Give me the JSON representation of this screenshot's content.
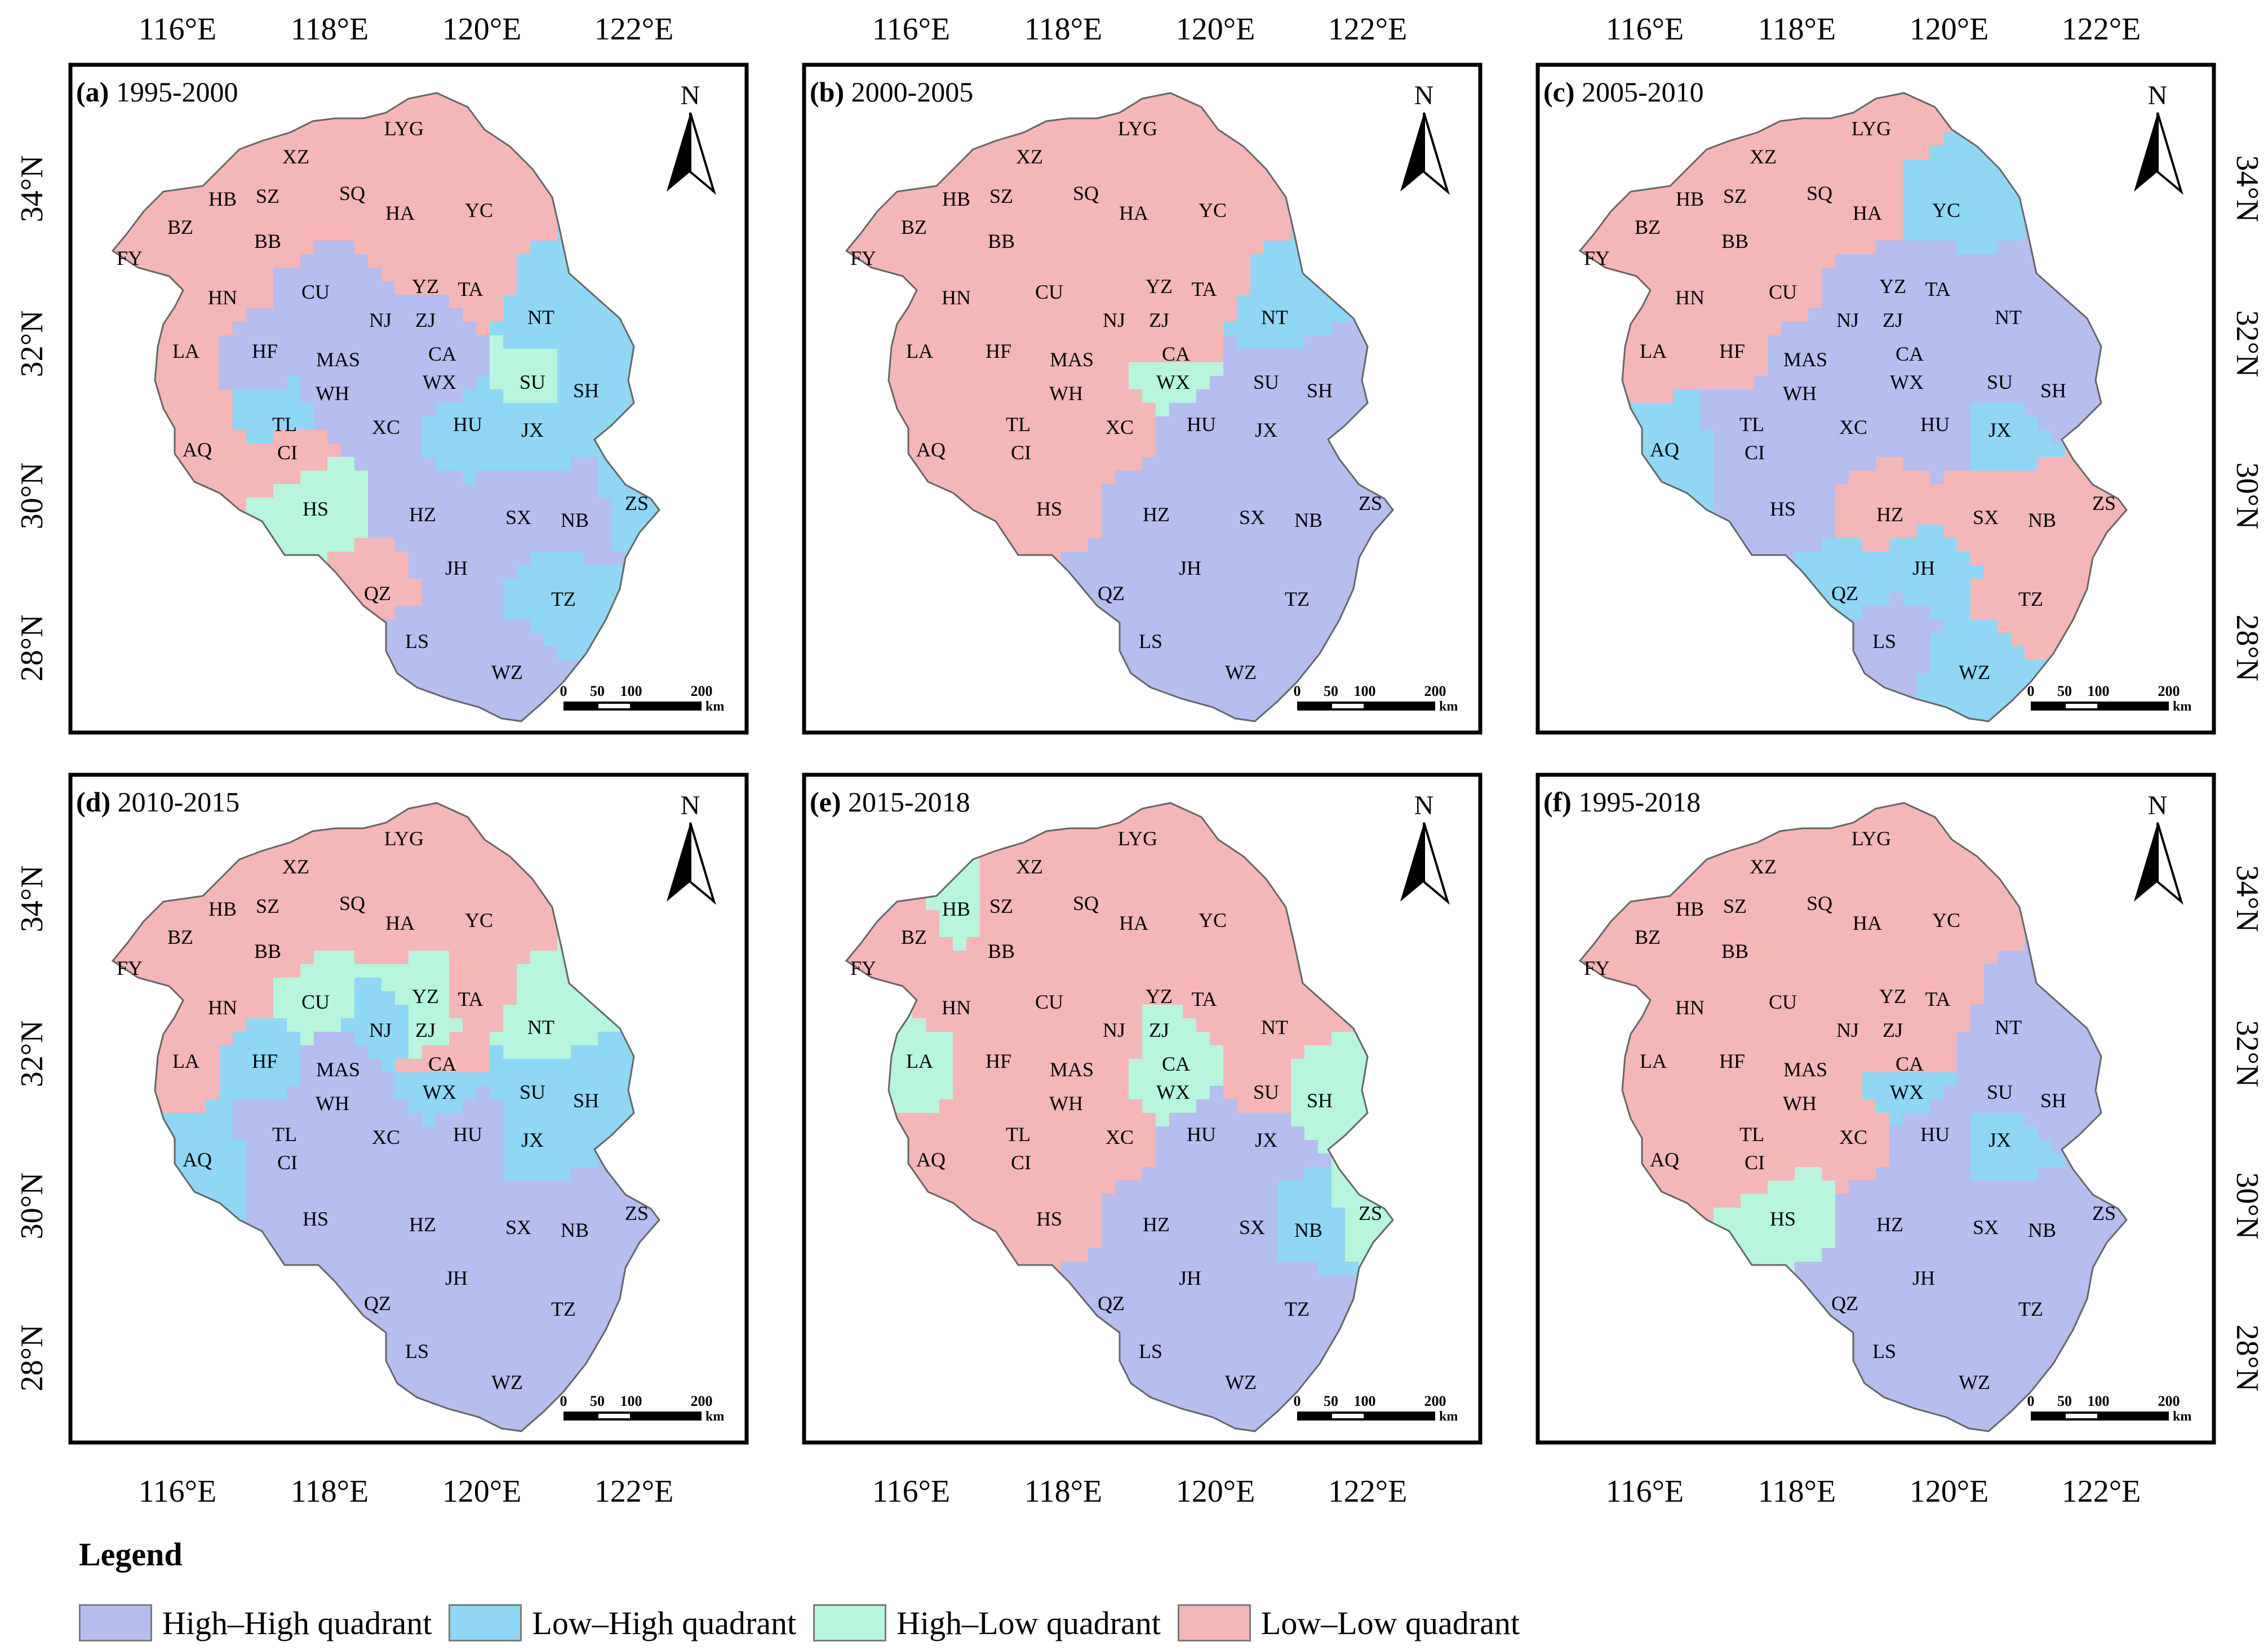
{
  "colors": {
    "hh": "#b6bdef",
    "lh": "#8fd7f5",
    "hl": "#b7f5dd",
    "ll": "#f4b6b6"
  },
  "axes": {
    "lon_labels": [
      "116°E",
      "118°E",
      "120°E",
      "122°E"
    ],
    "lat_labels": [
      "34°N",
      "32°N",
      "30°N",
      "28°N"
    ]
  },
  "north_label": "N",
  "scale_bar": {
    "ticks": [
      "0",
      "50",
      "100",
      "200"
    ],
    "unit": "km"
  },
  "panels": [
    {
      "label": "(a)",
      "period": "1995-2000",
      "cities": [
        {
          "code": "XZ",
          "q": "ll"
        },
        {
          "code": "LYG",
          "q": "ll"
        },
        {
          "code": "HB",
          "q": "ll"
        },
        {
          "code": "SZ",
          "q": "ll"
        },
        {
          "code": "SQ",
          "q": "ll"
        },
        {
          "code": "HA",
          "q": "ll"
        },
        {
          "code": "YC",
          "q": "ll"
        },
        {
          "code": "BZ",
          "q": "ll"
        },
        {
          "code": "BB",
          "q": "ll"
        },
        {
          "code": "FY",
          "q": "ll"
        },
        {
          "code": "HN",
          "q": "ll"
        },
        {
          "code": "CU",
          "q": "hh"
        },
        {
          "code": "YZ",
          "q": "ll"
        },
        {
          "code": "TA",
          "q": "ll"
        },
        {
          "code": "NT",
          "q": "lh"
        },
        {
          "code": "LA",
          "q": "ll"
        },
        {
          "code": "HF",
          "q": "hh"
        },
        {
          "code": "NJ",
          "q": "hh"
        },
        {
          "code": "ZJ",
          "q": "hh"
        },
        {
          "code": "MAS",
          "q": "hh"
        },
        {
          "code": "CA",
          "q": "hh"
        },
        {
          "code": "WX",
          "q": "hh"
        },
        {
          "code": "SU",
          "q": "hl"
        },
        {
          "code": "SH",
          "q": "lh"
        },
        {
          "code": "WH",
          "q": "hh"
        },
        {
          "code": "TL",
          "q": "lh"
        },
        {
          "code": "XC",
          "q": "hh"
        },
        {
          "code": "HU",
          "q": "lh"
        },
        {
          "code": "JX",
          "q": "lh"
        },
        {
          "code": "AQ",
          "q": "ll"
        },
        {
          "code": "CI",
          "q": "ll"
        },
        {
          "code": "HS",
          "q": "hl"
        },
        {
          "code": "HZ",
          "q": "hh"
        },
        {
          "code": "SX",
          "q": "hh"
        },
        {
          "code": "NB",
          "q": "hh"
        },
        {
          "code": "ZS",
          "q": "lh"
        },
        {
          "code": "JH",
          "q": "hh"
        },
        {
          "code": "QZ",
          "q": "ll"
        },
        {
          "code": "TZ",
          "q": "lh"
        },
        {
          "code": "LS",
          "q": "hh"
        },
        {
          "code": "WZ",
          "q": "hh"
        }
      ]
    },
    {
      "label": "(b)",
      "period": "2000-2005",
      "cities": [
        {
          "code": "XZ",
          "q": "ll"
        },
        {
          "code": "LYG",
          "q": "ll"
        },
        {
          "code": "HB",
          "q": "ll"
        },
        {
          "code": "SZ",
          "q": "ll"
        },
        {
          "code": "SQ",
          "q": "ll"
        },
        {
          "code": "HA",
          "q": "ll"
        },
        {
          "code": "YC",
          "q": "ll"
        },
        {
          "code": "BZ",
          "q": "ll"
        },
        {
          "code": "BB",
          "q": "ll"
        },
        {
          "code": "FY",
          "q": "ll"
        },
        {
          "code": "HN",
          "q": "ll"
        },
        {
          "code": "CU",
          "q": "ll"
        },
        {
          "code": "YZ",
          "q": "ll"
        },
        {
          "code": "TA",
          "q": "ll"
        },
        {
          "code": "NT",
          "q": "lh"
        },
        {
          "code": "LA",
          "q": "ll"
        },
        {
          "code": "HF",
          "q": "ll"
        },
        {
          "code": "NJ",
          "q": "ll"
        },
        {
          "code": "ZJ",
          "q": "ll"
        },
        {
          "code": "MAS",
          "q": "ll"
        },
        {
          "code": "CA",
          "q": "ll"
        },
        {
          "code": "WX",
          "q": "hl"
        },
        {
          "code": "SU",
          "q": "hh"
        },
        {
          "code": "SH",
          "q": "hh"
        },
        {
          "code": "WH",
          "q": "ll"
        },
        {
          "code": "TL",
          "q": "ll"
        },
        {
          "code": "XC",
          "q": "ll"
        },
        {
          "code": "HU",
          "q": "hh"
        },
        {
          "code": "JX",
          "q": "hh"
        },
        {
          "code": "AQ",
          "q": "ll"
        },
        {
          "code": "CI",
          "q": "ll"
        },
        {
          "code": "HS",
          "q": "ll"
        },
        {
          "code": "HZ",
          "q": "hh"
        },
        {
          "code": "SX",
          "q": "hh"
        },
        {
          "code": "NB",
          "q": "hh"
        },
        {
          "code": "ZS",
          "q": "hh"
        },
        {
          "code": "JH",
          "q": "hh"
        },
        {
          "code": "QZ",
          "q": "hh"
        },
        {
          "code": "TZ",
          "q": "hh"
        },
        {
          "code": "LS",
          "q": "hh"
        },
        {
          "code": "WZ",
          "q": "hh"
        }
      ]
    },
    {
      "label": "(c)",
      "period": "2005-2010",
      "cities": [
        {
          "code": "XZ",
          "q": "ll"
        },
        {
          "code": "LYG",
          "q": "ll"
        },
        {
          "code": "HB",
          "q": "ll"
        },
        {
          "code": "SZ",
          "q": "ll"
        },
        {
          "code": "SQ",
          "q": "ll"
        },
        {
          "code": "HA",
          "q": "ll"
        },
        {
          "code": "YC",
          "q": "lh"
        },
        {
          "code": "BZ",
          "q": "ll"
        },
        {
          "code": "BB",
          "q": "ll"
        },
        {
          "code": "FY",
          "q": "ll"
        },
        {
          "code": "HN",
          "q": "ll"
        },
        {
          "code": "CU",
          "q": "ll"
        },
        {
          "code": "YZ",
          "q": "hh"
        },
        {
          "code": "TA",
          "q": "hh"
        },
        {
          "code": "NT",
          "q": "hh"
        },
        {
          "code": "LA",
          "q": "ll"
        },
        {
          "code": "HF",
          "q": "ll"
        },
        {
          "code": "NJ",
          "q": "hh"
        },
        {
          "code": "ZJ",
          "q": "hh"
        },
        {
          "code": "MAS",
          "q": "hh"
        },
        {
          "code": "CA",
          "q": "hh"
        },
        {
          "code": "WX",
          "q": "hh"
        },
        {
          "code": "SU",
          "q": "hh"
        },
        {
          "code": "SH",
          "q": "hh"
        },
        {
          "code": "WH",
          "q": "hh"
        },
        {
          "code": "TL",
          "q": "hh"
        },
        {
          "code": "XC",
          "q": "hh"
        },
        {
          "code": "HU",
          "q": "hh"
        },
        {
          "code": "JX",
          "q": "lh"
        },
        {
          "code": "AQ",
          "q": "lh"
        },
        {
          "code": "CI",
          "q": "hh"
        },
        {
          "code": "HS",
          "q": "hh"
        },
        {
          "code": "HZ",
          "q": "ll"
        },
        {
          "code": "SX",
          "q": "ll"
        },
        {
          "code": "NB",
          "q": "ll"
        },
        {
          "code": "ZS",
          "q": "ll"
        },
        {
          "code": "JH",
          "q": "lh"
        },
        {
          "code": "QZ",
          "q": "lh"
        },
        {
          "code": "TZ",
          "q": "ll"
        },
        {
          "code": "LS",
          "q": "hh"
        },
        {
          "code": "WZ",
          "q": "lh"
        }
      ]
    },
    {
      "label": "(d)",
      "period": "2010-2015",
      "cities": [
        {
          "code": "XZ",
          "q": "ll"
        },
        {
          "code": "LYG",
          "q": "ll"
        },
        {
          "code": "HB",
          "q": "ll"
        },
        {
          "code": "SZ",
          "q": "ll"
        },
        {
          "code": "SQ",
          "q": "ll"
        },
        {
          "code": "HA",
          "q": "ll"
        },
        {
          "code": "YC",
          "q": "ll"
        },
        {
          "code": "BZ",
          "q": "ll"
        },
        {
          "code": "BB",
          "q": "ll"
        },
        {
          "code": "FY",
          "q": "ll"
        },
        {
          "code": "HN",
          "q": "ll"
        },
        {
          "code": "CU",
          "q": "hl"
        },
        {
          "code": "YZ",
          "q": "hl"
        },
        {
          "code": "TA",
          "q": "ll"
        },
        {
          "code": "NT",
          "q": "hl"
        },
        {
          "code": "LA",
          "q": "ll"
        },
        {
          "code": "HF",
          "q": "lh"
        },
        {
          "code": "NJ",
          "q": "lh"
        },
        {
          "code": "ZJ",
          "q": "hl"
        },
        {
          "code": "MAS",
          "q": "hh"
        },
        {
          "code": "CA",
          "q": "ll"
        },
        {
          "code": "WX",
          "q": "lh"
        },
        {
          "code": "SU",
          "q": "lh"
        },
        {
          "code": "SH",
          "q": "lh"
        },
        {
          "code": "WH",
          "q": "hh"
        },
        {
          "code": "TL",
          "q": "hh"
        },
        {
          "code": "XC",
          "q": "hh"
        },
        {
          "code": "HU",
          "q": "hh"
        },
        {
          "code": "JX",
          "q": "lh"
        },
        {
          "code": "AQ",
          "q": "lh"
        },
        {
          "code": "CI",
          "q": "hh"
        },
        {
          "code": "HS",
          "q": "hh"
        },
        {
          "code": "HZ",
          "q": "hh"
        },
        {
          "code": "SX",
          "q": "hh"
        },
        {
          "code": "NB",
          "q": "hh"
        },
        {
          "code": "ZS",
          "q": "hh"
        },
        {
          "code": "JH",
          "q": "hh"
        },
        {
          "code": "QZ",
          "q": "hh"
        },
        {
          "code": "TZ",
          "q": "hh"
        },
        {
          "code": "LS",
          "q": "hh"
        },
        {
          "code": "WZ",
          "q": "hh"
        }
      ]
    },
    {
      "label": "(e)",
      "period": "2015-2018",
      "cities": [
        {
          "code": "XZ",
          "q": "ll"
        },
        {
          "code": "LYG",
          "q": "ll"
        },
        {
          "code": "HB",
          "q": "hl"
        },
        {
          "code": "SZ",
          "q": "ll"
        },
        {
          "code": "SQ",
          "q": "ll"
        },
        {
          "code": "HA",
          "q": "ll"
        },
        {
          "code": "YC",
          "q": "ll"
        },
        {
          "code": "BZ",
          "q": "ll"
        },
        {
          "code": "BB",
          "q": "ll"
        },
        {
          "code": "FY",
          "q": "ll"
        },
        {
          "code": "HN",
          "q": "ll"
        },
        {
          "code": "CU",
          "q": "ll"
        },
        {
          "code": "YZ",
          "q": "ll"
        },
        {
          "code": "TA",
          "q": "ll"
        },
        {
          "code": "NT",
          "q": "ll"
        },
        {
          "code": "LA",
          "q": "hl"
        },
        {
          "code": "HF",
          "q": "ll"
        },
        {
          "code": "NJ",
          "q": "ll"
        },
        {
          "code": "ZJ",
          "q": "hl"
        },
        {
          "code": "MAS",
          "q": "ll"
        },
        {
          "code": "CA",
          "q": "hl"
        },
        {
          "code": "WX",
          "q": "hl"
        },
        {
          "code": "SU",
          "q": "ll"
        },
        {
          "code": "SH",
          "q": "hl"
        },
        {
          "code": "WH",
          "q": "ll"
        },
        {
          "code": "TL",
          "q": "ll"
        },
        {
          "code": "XC",
          "q": "ll"
        },
        {
          "code": "HU",
          "q": "hh"
        },
        {
          "code": "JX",
          "q": "hh"
        },
        {
          "code": "AQ",
          "q": "ll"
        },
        {
          "code": "CI",
          "q": "ll"
        },
        {
          "code": "HS",
          "q": "ll"
        },
        {
          "code": "HZ",
          "q": "hh"
        },
        {
          "code": "SX",
          "q": "hh"
        },
        {
          "code": "NB",
          "q": "lh"
        },
        {
          "code": "ZS",
          "q": "hl"
        },
        {
          "code": "JH",
          "q": "hh"
        },
        {
          "code": "QZ",
          "q": "hh"
        },
        {
          "code": "TZ",
          "q": "hh"
        },
        {
          "code": "LS",
          "q": "hh"
        },
        {
          "code": "WZ",
          "q": "hh"
        }
      ]
    },
    {
      "label": "(f)",
      "period": "1995-2018",
      "cities": [
        {
          "code": "XZ",
          "q": "ll"
        },
        {
          "code": "LYG",
          "q": "ll"
        },
        {
          "code": "HB",
          "q": "ll"
        },
        {
          "code": "SZ",
          "q": "ll"
        },
        {
          "code": "SQ",
          "q": "ll"
        },
        {
          "code": "HA",
          "q": "ll"
        },
        {
          "code": "YC",
          "q": "ll"
        },
        {
          "code": "BZ",
          "q": "ll"
        },
        {
          "code": "BB",
          "q": "ll"
        },
        {
          "code": "FY",
          "q": "ll"
        },
        {
          "code": "HN",
          "q": "ll"
        },
        {
          "code": "CU",
          "q": "ll"
        },
        {
          "code": "YZ",
          "q": "ll"
        },
        {
          "code": "TA",
          "q": "ll"
        },
        {
          "code": "NT",
          "q": "hh"
        },
        {
          "code": "LA",
          "q": "ll"
        },
        {
          "code": "HF",
          "q": "ll"
        },
        {
          "code": "NJ",
          "q": "ll"
        },
        {
          "code": "ZJ",
          "q": "ll"
        },
        {
          "code": "MAS",
          "q": "ll"
        },
        {
          "code": "CA",
          "q": "ll"
        },
        {
          "code": "WX",
          "q": "lh"
        },
        {
          "code": "SU",
          "q": "hh"
        },
        {
          "code": "SH",
          "q": "hh"
        },
        {
          "code": "WH",
          "q": "ll"
        },
        {
          "code": "TL",
          "q": "ll"
        },
        {
          "code": "XC",
          "q": "ll"
        },
        {
          "code": "HU",
          "q": "hh"
        },
        {
          "code": "JX",
          "q": "lh"
        },
        {
          "code": "AQ",
          "q": "ll"
        },
        {
          "code": "CI",
          "q": "ll"
        },
        {
          "code": "HS",
          "q": "hl"
        },
        {
          "code": "HZ",
          "q": "hh"
        },
        {
          "code": "SX",
          "q": "hh"
        },
        {
          "code": "NB",
          "q": "hh"
        },
        {
          "code": "ZS",
          "q": "hh"
        },
        {
          "code": "JH",
          "q": "hh"
        },
        {
          "code": "QZ",
          "q": "hh"
        },
        {
          "code": "TZ",
          "q": "hh"
        },
        {
          "code": "LS",
          "q": "hh"
        },
        {
          "code": "WZ",
          "q": "hh"
        }
      ]
    }
  ],
  "legend": {
    "title": "Legend",
    "items": [
      {
        "key": "hh",
        "label": "High–High quadrant"
      },
      {
        "key": "lh",
        "label": "Low–High quadrant"
      },
      {
        "key": "hl",
        "label": "High–Low quadrant"
      },
      {
        "key": "ll",
        "label": "Low–Low quadrant"
      }
    ]
  }
}
